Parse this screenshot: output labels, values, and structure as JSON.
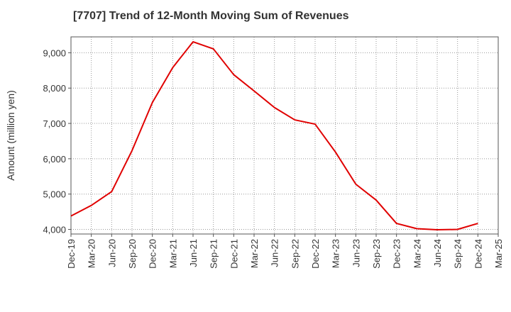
{
  "chart_data": {
    "type": "line",
    "title": "[7707]  Trend of 12-Month Moving Sum of Revenues",
    "ylabel": "Amount (million yen)",
    "xlabel": "",
    "x_ticks": [
      "Dec-19",
      "Mar-20",
      "Jun-20",
      "Sep-20",
      "Dec-20",
      "Mar-21",
      "Jun-21",
      "Sep-21",
      "Dec-21",
      "Mar-22",
      "Jun-22",
      "Sep-22",
      "Dec-22",
      "Mar-23",
      "Jun-23",
      "Sep-23",
      "Dec-23",
      "Mar-24",
      "Jun-24",
      "Sep-24",
      "Dec-24",
      "Mar-25"
    ],
    "y_ticks": [
      "4,000",
      "5,000",
      "6,000",
      "7,000",
      "8,000",
      "9,000"
    ],
    "y_tick_values": [
      4000,
      5000,
      6000,
      7000,
      8000,
      9000
    ],
    "ylim": [
      3870,
      9450
    ],
    "grid": true,
    "series": [
      {
        "color": "#e00000",
        "x": [
          "Dec-19",
          "Mar-20",
          "Jun-20",
          "Sep-20",
          "Dec-20",
          "Mar-21",
          "Jun-21",
          "Sep-21",
          "Dec-21",
          "Mar-22",
          "Jun-22",
          "Sep-22",
          "Dec-22",
          "Mar-23",
          "Jun-23",
          "Sep-23",
          "Dec-23",
          "Mar-24",
          "Jun-24",
          "Sep-24",
          "Dec-24"
        ],
        "values": [
          4380,
          4680,
          5070,
          6230,
          7590,
          8580,
          9310,
          9110,
          8380,
          7920,
          7450,
          7100,
          6980,
          6190,
          5280,
          4830,
          4170,
          4020,
          3990,
          4000,
          4170
        ]
      }
    ]
  }
}
